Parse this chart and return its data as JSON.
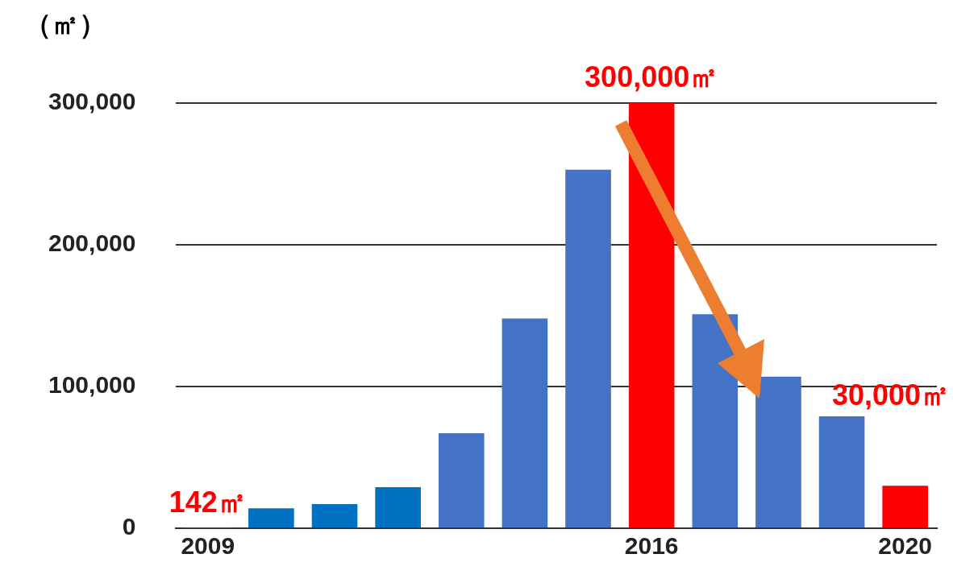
{
  "chart_data": {
    "type": "bar",
    "ylabel": "（㎡）",
    "categories": [
      "2009",
      null,
      null,
      null,
      null,
      null,
      null,
      "2016",
      null,
      null,
      null,
      "2020"
    ],
    "values": [
      142,
      14000,
      17000,
      29000,
      67000,
      148000,
      253000,
      300000,
      151000,
      107000,
      79000,
      30000
    ],
    "colors": [
      "#ff0000",
      "#0070c0",
      "#0070c0",
      "#0070c0",
      "#4472c4",
      "#4472c4",
      "#4472c4",
      "#ff0000",
      "#4472c4",
      "#4472c4",
      "#4472c4",
      "#ff0000"
    ],
    "value_labels": [
      "142㎡",
      null,
      null,
      null,
      null,
      null,
      null,
      "300,000㎡",
      null,
      null,
      null,
      "30,000㎡"
    ],
    "ylim": [
      0,
      300000
    ],
    "yticks": [
      0,
      {
        "value": 100000,
        "label": "100,000"
      },
      {
        "value": 200000,
        "label": "200,000"
      },
      {
        "value": 300000,
        "label": "300,000"
      }
    ],
    "grid": "y",
    "legend": false
  }
}
